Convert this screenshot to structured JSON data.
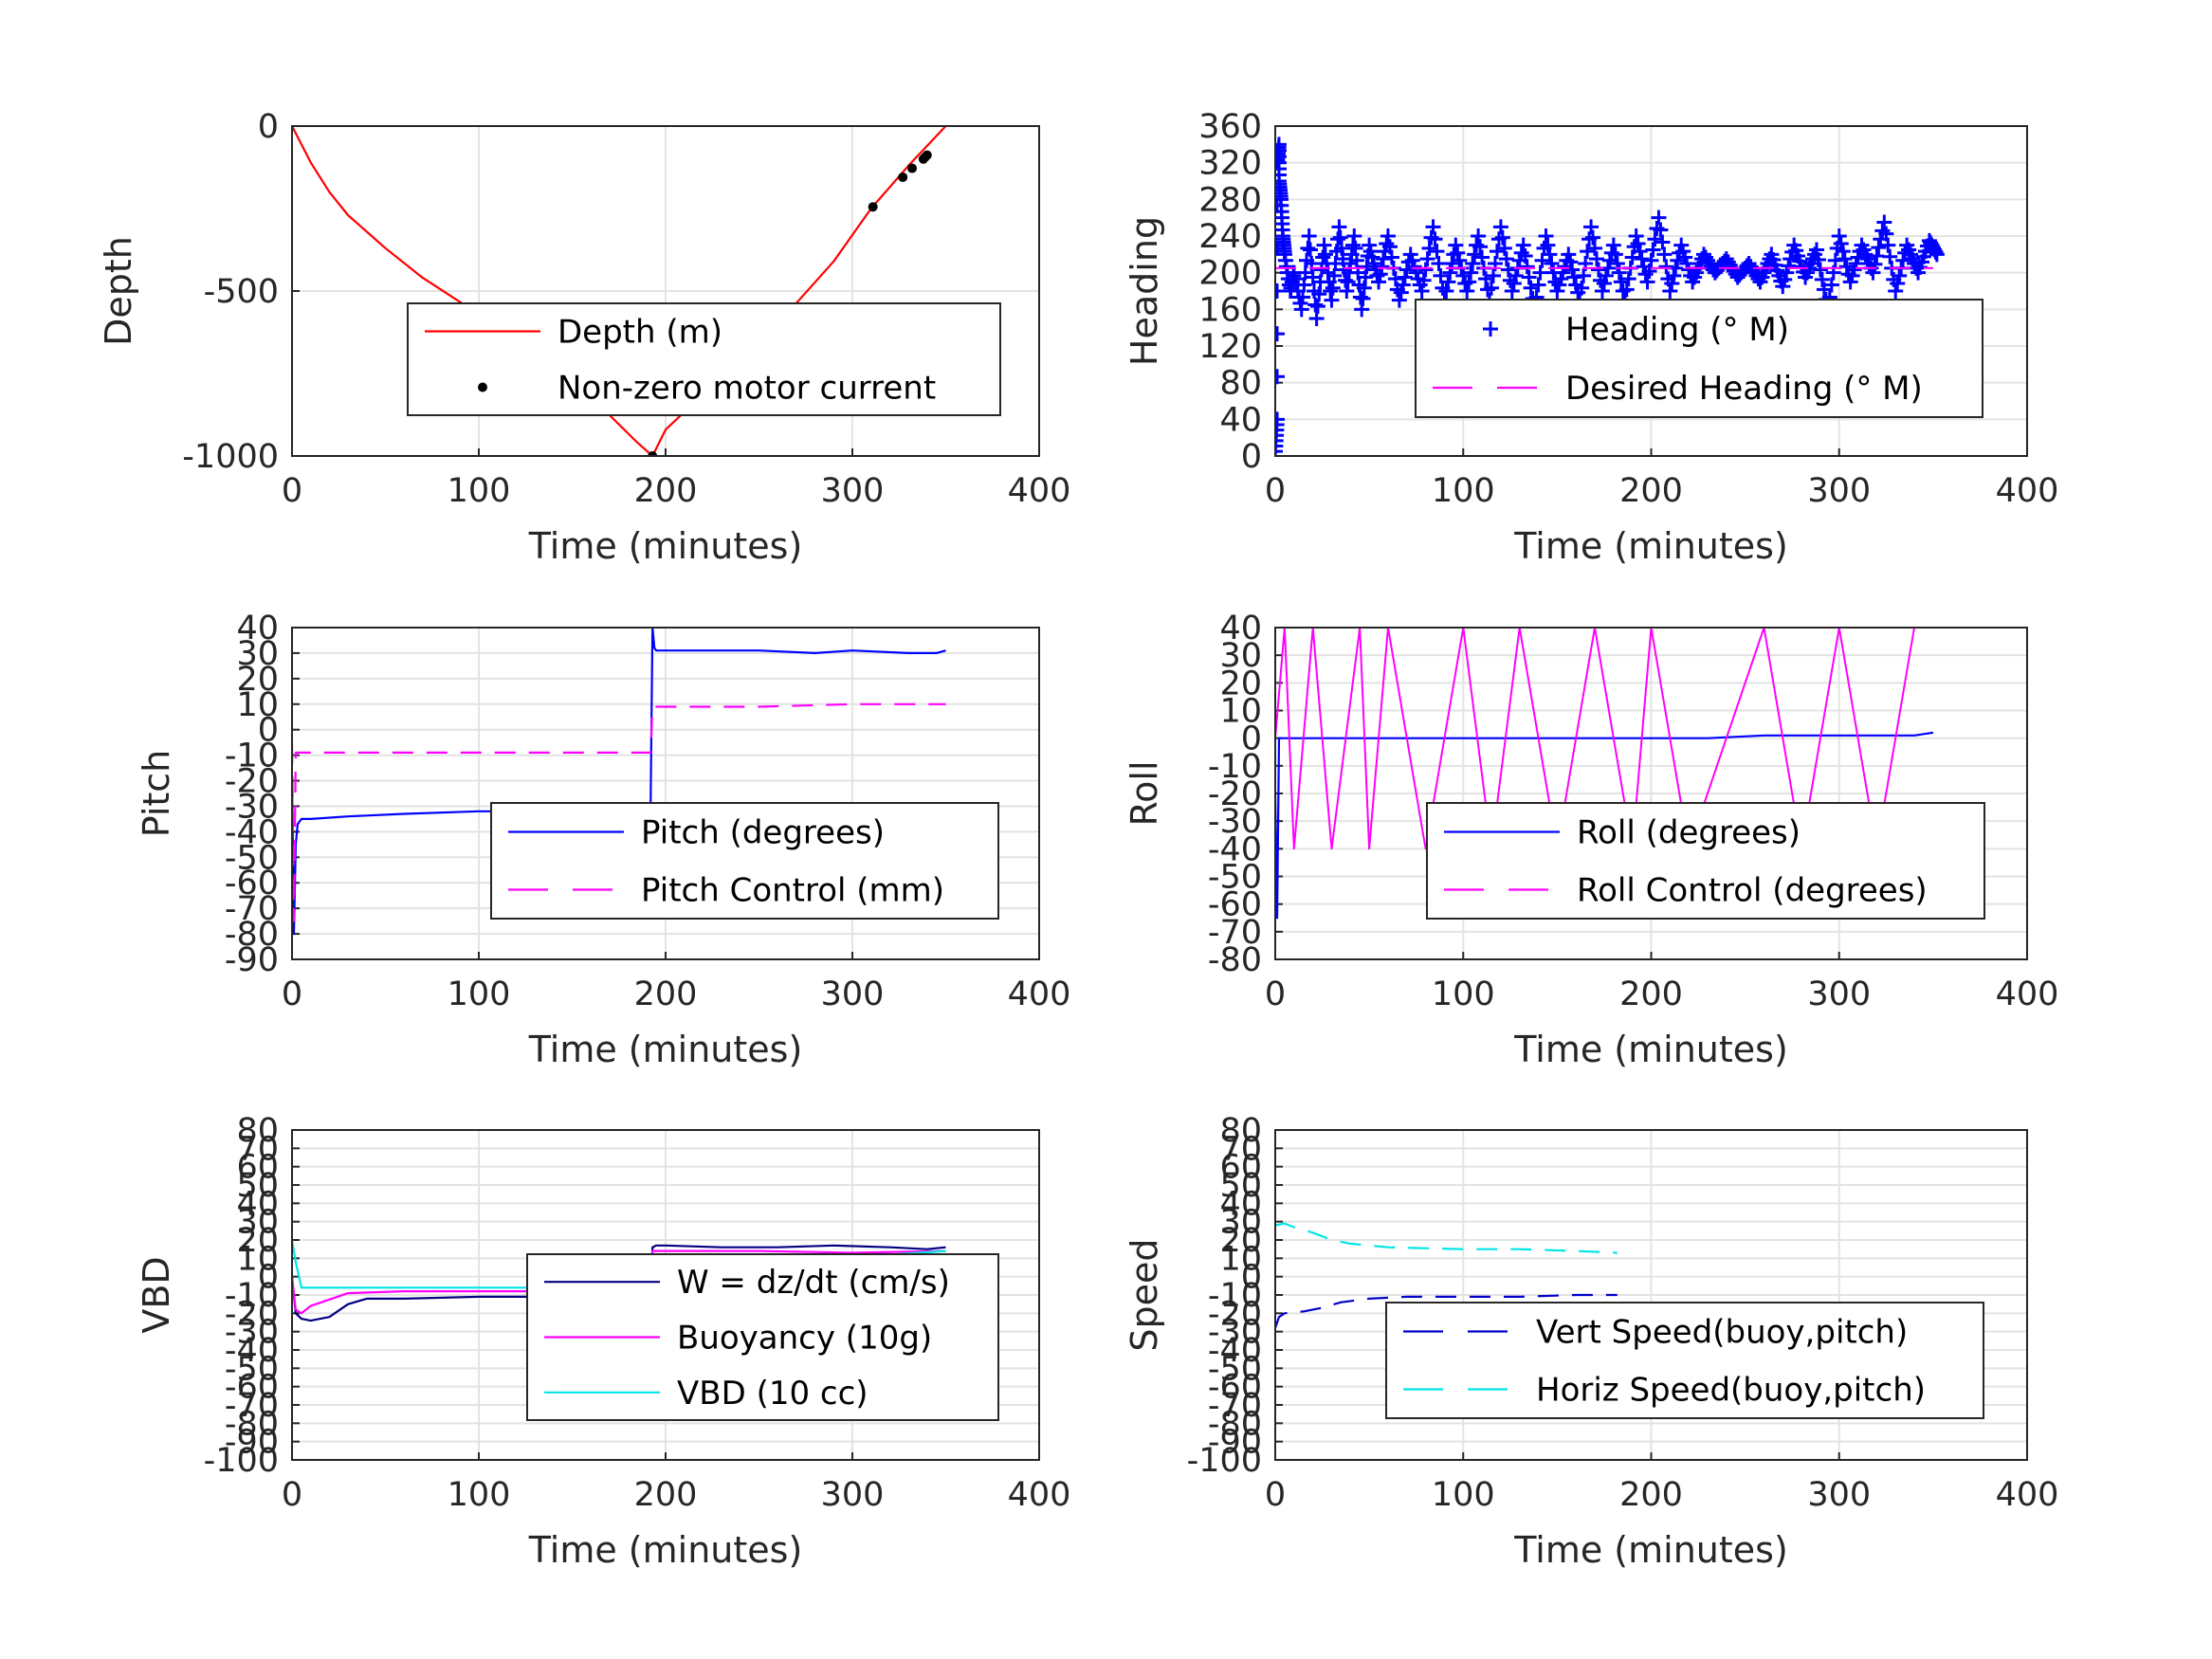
{
  "panels": [
    {
      "id": "depth",
      "xlabel": "Time (minutes)",
      "ylabel": "Depth",
      "xticks": [
        "0",
        "100",
        "200",
        "300",
        "400"
      ],
      "yticks": [
        "0",
        "-500",
        "-1000"
      ],
      "legend": [
        "Depth (m)",
        "Non-zero motor current"
      ]
    },
    {
      "id": "heading",
      "xlabel": "Time (minutes)",
      "ylabel": "Heading",
      "xticks": [
        "0",
        "100",
        "200",
        "300",
        "400"
      ],
      "yticks": [
        "360",
        "320",
        "280",
        "240",
        "200",
        "160",
        "120",
        "80",
        "40",
        "0"
      ],
      "legend": [
        "Heading (° M)",
        "Desired Heading (° M)"
      ]
    },
    {
      "id": "pitch",
      "xlabel": "Time (minutes)",
      "ylabel": "Pitch",
      "xticks": [
        "0",
        "100",
        "200",
        "300",
        "400"
      ],
      "yticks": [
        "40",
        "30",
        "20",
        "10",
        "0",
        "-10",
        "-20",
        "-30",
        "-40",
        "-50",
        "-60",
        "-70",
        "-80",
        "-90"
      ],
      "legend": [
        "Pitch (degrees)",
        "Pitch Control (mm)"
      ]
    },
    {
      "id": "roll",
      "xlabel": "Time (minutes)",
      "ylabel": "Roll",
      "xticks": [
        "0",
        "100",
        "200",
        "300",
        "400"
      ],
      "yticks": [
        "40",
        "30",
        "20",
        "10",
        "0",
        "-10",
        "-20",
        "-30",
        "-40",
        "-50",
        "-60",
        "-70",
        "-80"
      ],
      "legend": [
        "Roll (degrees)",
        "Roll Control (degrees)"
      ]
    },
    {
      "id": "vbd",
      "xlabel": "Time (minutes)",
      "ylabel": "VBD",
      "xticks": [
        "0",
        "100",
        "200",
        "300",
        "400"
      ],
      "yticks": [
        "80",
        "70",
        "60",
        "50",
        "40",
        "30",
        "20",
        "10",
        "0",
        "-10",
        "-20",
        "-30",
        "-40",
        "-50",
        "-60",
        "-70",
        "-80",
        "-90",
        "-100"
      ],
      "legend": [
        "W = dz/dt (cm/s)",
        "Buoyancy (10g)",
        "VBD (10 cc)"
      ]
    },
    {
      "id": "speed",
      "xlabel": "Time (minutes)",
      "ylabel": "Speed",
      "xticks": [
        "0",
        "100",
        "200",
        "300",
        "400"
      ],
      "yticks": [
        "80",
        "70",
        "60",
        "50",
        "40",
        "30",
        "20",
        "10",
        "0",
        "-10",
        "-20",
        "-30",
        "-40",
        "-50",
        "-60",
        "-70",
        "-80",
        "-90",
        "-100"
      ],
      "legend": [
        "Vert Speed(buoy,pitch)",
        "Horiz Speed(buoy,pitch)"
      ]
    }
  ],
  "chart_data": [
    {
      "type": "line",
      "xlabel": "Time (minutes)",
      "ylabel": "Depth",
      "xlim": [
        0,
        400
      ],
      "ylim": [
        -1000,
        0
      ],
      "grid": true,
      "legend_position": "center-right",
      "series": [
        {
          "name": "Depth (m)",
          "color": "#ff0000",
          "style": "solid",
          "x": [
            0,
            10,
            20,
            30,
            50,
            70,
            100,
            130,
            160,
            185,
            193,
            200,
            230,
            260,
            290,
            310,
            330,
            350
          ],
          "y": [
            0,
            -110,
            -200,
            -270,
            -370,
            -460,
            -570,
            -690,
            -820,
            -960,
            -1000,
            -920,
            -760,
            -600,
            -410,
            -250,
            -120,
            0
          ]
        },
        {
          "name": "Non-zero motor current",
          "color": "#000000",
          "style": "markers",
          "x": [
            193,
            311,
            327,
            332,
            338,
            339,
            340
          ],
          "y": [
            -1000,
            -245,
            -155,
            -128,
            -100,
            -94,
            -88
          ]
        }
      ]
    },
    {
      "type": "scatter",
      "xlabel": "Time (minutes)",
      "ylabel": "Heading",
      "xlim": [
        0,
        400
      ],
      "ylim": [
        0,
        360
      ],
      "grid": true,
      "legend_position": "lower-right",
      "series": [
        {
          "name": "Heading (° M)",
          "color": "#0000ff",
          "style": "plus",
          "x": [
            0,
            1,
            1,
            2,
            2,
            3,
            4,
            5,
            8,
            10,
            14,
            18,
            22,
            26,
            30,
            34,
            38,
            42,
            46,
            50,
            55,
            60,
            66,
            72,
            78,
            84,
            90,
            96,
            102,
            108,
            114,
            120,
            126,
            132,
            138,
            144,
            150,
            156,
            162,
            168,
            174,
            180,
            186,
            192,
            198,
            204,
            210,
            216,
            222,
            228,
            234,
            240,
            246,
            252,
            258,
            264,
            270,
            276,
            282,
            288,
            294,
            300,
            306,
            312,
            318,
            324,
            330,
            336,
            342,
            348,
            352
          ],
          "y": [
            5,
            40,
            320,
            340,
            300,
            280,
            240,
            220,
            180,
            200,
            160,
            240,
            150,
            230,
            170,
            250,
            180,
            240,
            160,
            230,
            190,
            240,
            170,
            220,
            180,
            250,
            170,
            230,
            180,
            240,
            170,
            250,
            180,
            230,
            160,
            240,
            180,
            220,
            170,
            250,
            180,
            230,
            170,
            240,
            190,
            260,
            180,
            230,
            190,
            220,
            200,
            215,
            195,
            210,
            190,
            220,
            185,
            230,
            195,
            225,
            160,
            240,
            190,
            230,
            200,
            255,
            180,
            230,
            200,
            235,
            220
          ]
        },
        {
          "name": "Desired Heading (° M)",
          "color": "#ff00ff",
          "style": "dashed",
          "x": [
            0,
            100,
            200,
            250,
            300,
            350
          ],
          "y": [
            205,
            205,
            205,
            205,
            205,
            205
          ]
        }
      ]
    },
    {
      "type": "line",
      "xlabel": "Time (minutes)",
      "ylabel": "Pitch",
      "xlim": [
        0,
        400
      ],
      "ylim": [
        -90,
        40
      ],
      "grid": true,
      "legend_position": "center-right",
      "series": [
        {
          "name": "Pitch (degrees)",
          "color": "#0000ff",
          "style": "solid",
          "x": [
            0,
            1,
            2,
            3,
            5,
            10,
            30,
            60,
            100,
            130,
            160,
            190,
            192,
            193,
            194,
            195,
            200,
            250,
            280,
            300,
            330,
            345,
            350
          ],
          "y": [
            -20,
            -80,
            -45,
            -37,
            -35,
            -35,
            -34,
            -33,
            -32,
            -32,
            -31,
            -31,
            -30,
            40,
            32,
            31,
            31,
            31,
            30,
            31,
            30,
            30,
            31
          ]
        },
        {
          "name": "Pitch Control (mm)",
          "color": "#ff00ff",
          "style": "dashed",
          "x": [
            0,
            1,
            2,
            5,
            50,
            100,
            150,
            190,
            192,
            193,
            194,
            200,
            250,
            300,
            350
          ],
          "y": [
            -5,
            -75,
            -9,
            -9,
            -9,
            -9,
            -9,
            -9,
            -9,
            9,
            9,
            9,
            9,
            10,
            10
          ]
        }
      ]
    },
    {
      "type": "line",
      "xlabel": "Time (minutes)",
      "ylabel": "Roll",
      "xlim": [
        0,
        400
      ],
      "ylim": [
        -80,
        40
      ],
      "grid": true,
      "legend_position": "center-right",
      "series": [
        {
          "name": "Roll (degrees)",
          "color": "#0000ff",
          "style": "solid",
          "x": [
            0,
            1,
            2,
            5,
            50,
            100,
            150,
            200,
            230,
            260,
            280,
            300,
            320,
            340,
            350
          ],
          "y": [
            -20,
            -65,
            0,
            0,
            0,
            0,
            0,
            0,
            0,
            1,
            1,
            1,
            1,
            1,
            2
          ]
        },
        {
          "name": "Roll Control (degrees)",
          "color": "#ff00ff",
          "style": "dashed",
          "x": [
            0,
            5,
            10,
            20,
            30,
            45,
            50,
            60,
            80,
            100,
            115,
            130,
            150,
            170,
            190,
            200,
            220,
            240,
            260,
            280,
            300,
            320,
            340
          ],
          "y": [
            0,
            40,
            -40,
            40,
            -40,
            40,
            -40,
            40,
            -40,
            40,
            -40,
            40,
            -40,
            40,
            -40,
            40,
            -40,
            0,
            40,
            -40,
            40,
            -40,
            40
          ]
        }
      ]
    },
    {
      "type": "line",
      "xlabel": "Time (minutes)",
      "ylabel": "VBD",
      "xlim": [
        0,
        400
      ],
      "ylim": [
        -100,
        80
      ],
      "grid": true,
      "legend_position": "center-right",
      "series": [
        {
          "name": "W = dz/dt (cm/s)",
          "color": "#000080",
          "style": "solid",
          "x": [
            0,
            2,
            5,
            10,
            20,
            30,
            40,
            60,
            100,
            130,
            160,
            190,
            192,
            193,
            195,
            200,
            230,
            260,
            290,
            320,
            340,
            350
          ],
          "y": [
            0,
            -20,
            -23,
            -24,
            -22,
            -15,
            -12,
            -12,
            -11,
            -11,
            -10,
            -9,
            -9,
            16,
            17,
            17,
            16,
            16,
            17,
            16,
            15,
            16
          ]
        },
        {
          "name": "Buoyancy (10g)",
          "color": "#ff00ff",
          "style": "solid",
          "x": [
            0,
            2,
            5,
            10,
            30,
            60,
            100,
            150,
            190,
            192,
            193,
            200,
            250,
            300,
            350
          ],
          "y": [
            0,
            -18,
            -20,
            -16,
            -9,
            -8,
            -8,
            -8,
            -8,
            -8,
            14,
            14,
            14,
            13,
            14
          ]
        },
        {
          "name": "VBD (10 cc)",
          "color": "#00e5e5",
          "style": "solid",
          "x": [
            0,
            2,
            5,
            50,
            100,
            150,
            190,
            192,
            193,
            200,
            250,
            270,
            300,
            320,
            350
          ],
          "y": [
            20,
            8,
            -6,
            -6,
            -6,
            -6,
            -6,
            -6,
            7,
            7,
            7,
            8,
            10,
            12,
            14
          ]
        }
      ]
    },
    {
      "type": "line",
      "xlabel": "Time (minutes)",
      "ylabel": "Speed",
      "xlim": [
        0,
        400
      ],
      "ylim": [
        -100,
        80
      ],
      "grid": true,
      "legend_position": "lower-right",
      "series": [
        {
          "name": "Vert Speed(buoy,pitch)",
          "color": "#0000cc",
          "style": "dashed",
          "x": [
            0,
            2,
            5,
            15,
            25,
            35,
            50,
            70,
            100,
            130,
            160,
            182
          ],
          "y": [
            -28,
            -22,
            -20,
            -19,
            -17,
            -14,
            -12,
            -11,
            -11,
            -11,
            -10,
            -10
          ]
        },
        {
          "name": "Horiz Speed(buoy,pitch)",
          "color": "#00e5e5",
          "style": "dashed",
          "x": [
            0,
            5,
            10,
            20,
            30,
            40,
            60,
            100,
            130,
            160,
            182
          ],
          "y": [
            28,
            29,
            27,
            24,
            20,
            18,
            16,
            15,
            15,
            14,
            13
          ]
        }
      ]
    }
  ]
}
